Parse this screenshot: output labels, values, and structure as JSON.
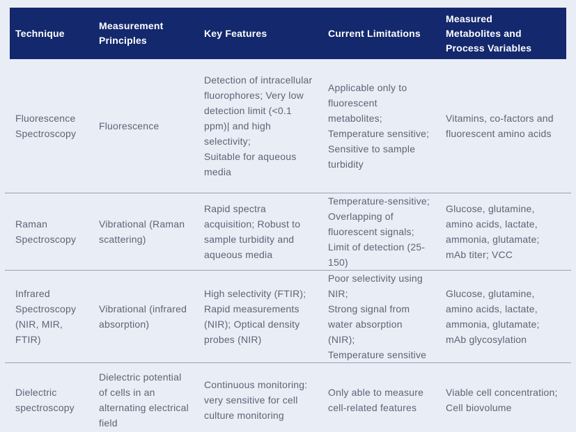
{
  "colors": {
    "header_bg": "#13286d",
    "header_text": "#ffffff",
    "body_text": "#5c6474",
    "page_bg": "#e9edf6",
    "divider": "#9aa1b0"
  },
  "table": {
    "columns": [
      "Technique",
      "Measurement Principles",
      "Key Features",
      "Current Limitations",
      "Measured Metabolites and Process Variables"
    ],
    "rows": [
      {
        "technique": "Fluorescence Spectroscopy",
        "principles": "Fluorescence",
        "features": "Detection of intracellular fluorophores; Very low detection limit (<0.1 ppm)| and high selectivity;\nSuitable for aqueous media",
        "limitations": "Applicable only to fluorescent metabolites;\nTemperature sensitive;\nSensitive to sample turbidity",
        "metabolites": "Vitamins, co-factors and fluorescent amino acids"
      },
      {
        "technique": "Raman Spectroscopy",
        "principles": "Vibrational (Raman scattering)",
        "features": "Rapid spectra acquisition; Robust to sample turbidity and aqueous media",
        "limitations": "Temperature-sensitive; Overlapping of fluorescent signals; Limit of detection (25-150)",
        "metabolites": "Glucose, glutamine, amino acids, lactate, ammonia, glutamate; mAb titer; VCC"
      },
      {
        "technique": "Infrared Spectroscopy (NIR, MIR, FTIR)",
        "principles": "Vibrational (infrared absorption)",
        "features": "High selectivity (FTIR); Rapid measurements (NIR); Optical density probes (NIR)",
        "limitations": "Poor selectivity using NIR;\nStrong signal from water absorption (NIR);\nTemperature sensitive",
        "metabolites": "Glucose, glutamine, amino acids, lactate, ammonia, glutamate; mAb glycosylation"
      },
      {
        "technique": "Dielectric spectroscopy",
        "principles": "Dielectric potential of cells in an alternating electrical field",
        "features": "Continuous monitoring: very sensitive for cell culture monitoring",
        "limitations": "Only able to measure cell-related features",
        "metabolites": "Viable cell concentration;\nCell biovolume"
      }
    ]
  }
}
